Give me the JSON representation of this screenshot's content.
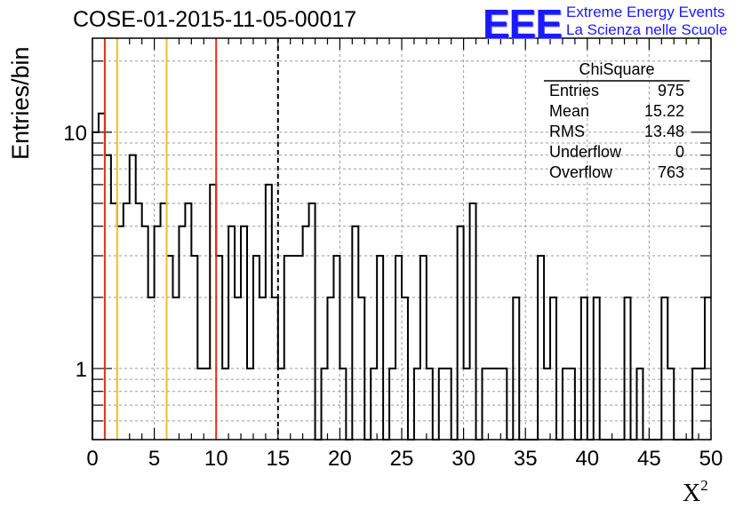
{
  "title": "COSE-01-2015-11-05-00017",
  "logo": {
    "mark": "EEE",
    "line1": "Extreme Energy Events",
    "line2": "La Scienza nelle Scuole"
  },
  "stats": {
    "title": "ChiSquare",
    "rows": [
      {
        "key": "Entries",
        "value": "975"
      },
      {
        "key": "Mean",
        "value": "15.22"
      },
      {
        "key": "RMS",
        "value": "13.48"
      },
      {
        "key": "Underflow",
        "value": "0"
      },
      {
        "key": "Overflow",
        "value": "763"
      }
    ]
  },
  "chart_data": {
    "type": "bar",
    "histogram": "step",
    "title": "COSE-01-2015-11-05-00017",
    "xlabel": "X",
    "xlabel_sup": "2",
    "ylabel": "Entries/bin",
    "xlim": [
      0,
      50
    ],
    "ylim": [
      0.5,
      25
    ],
    "yscale": "log",
    "grid": true,
    "bin_width": 0.5,
    "x_ticks": [
      "0",
      "5",
      "10",
      "15",
      "20",
      "25",
      "30",
      "35",
      "40",
      "45",
      "50"
    ],
    "y_ticks": [
      "1",
      "10"
    ],
    "values": [
      10,
      12,
      8,
      5,
      4,
      5,
      8,
      5,
      4,
      2,
      4,
      5,
      3,
      2,
      4,
      5,
      3,
      1,
      1,
      6,
      3,
      1,
      4,
      2,
      4,
      1,
      3,
      2,
      6,
      2,
      1,
      3,
      3,
      3,
      4,
      5,
      0,
      1,
      2,
      3,
      1,
      0,
      4,
      2,
      0,
      1,
      3,
      0,
      1,
      3,
      2,
      0,
      1,
      3,
      1,
      0,
      1,
      1,
      0,
      4,
      1,
      5,
      0,
      1,
      1,
      1,
      1,
      0,
      2,
      0,
      0,
      0,
      3,
      1,
      2,
      0,
      1,
      1,
      0,
      2,
      0,
      2,
      0,
      0,
      0,
      0,
      2,
      0,
      1,
      0,
      0,
      0,
      2,
      1,
      0,
      0,
      0,
      1,
      1,
      2
    ],
    "vlines": [
      {
        "x": 1,
        "color": "#e03020",
        "style": "solid"
      },
      {
        "x": 2,
        "color": "#f0c020",
        "style": "solid"
      },
      {
        "x": 6,
        "color": "#f0c020",
        "style": "solid"
      },
      {
        "x": 10,
        "color": "#e03020",
        "style": "solid"
      },
      {
        "x": 15,
        "color": "#000000",
        "style": "dashed"
      }
    ]
  }
}
